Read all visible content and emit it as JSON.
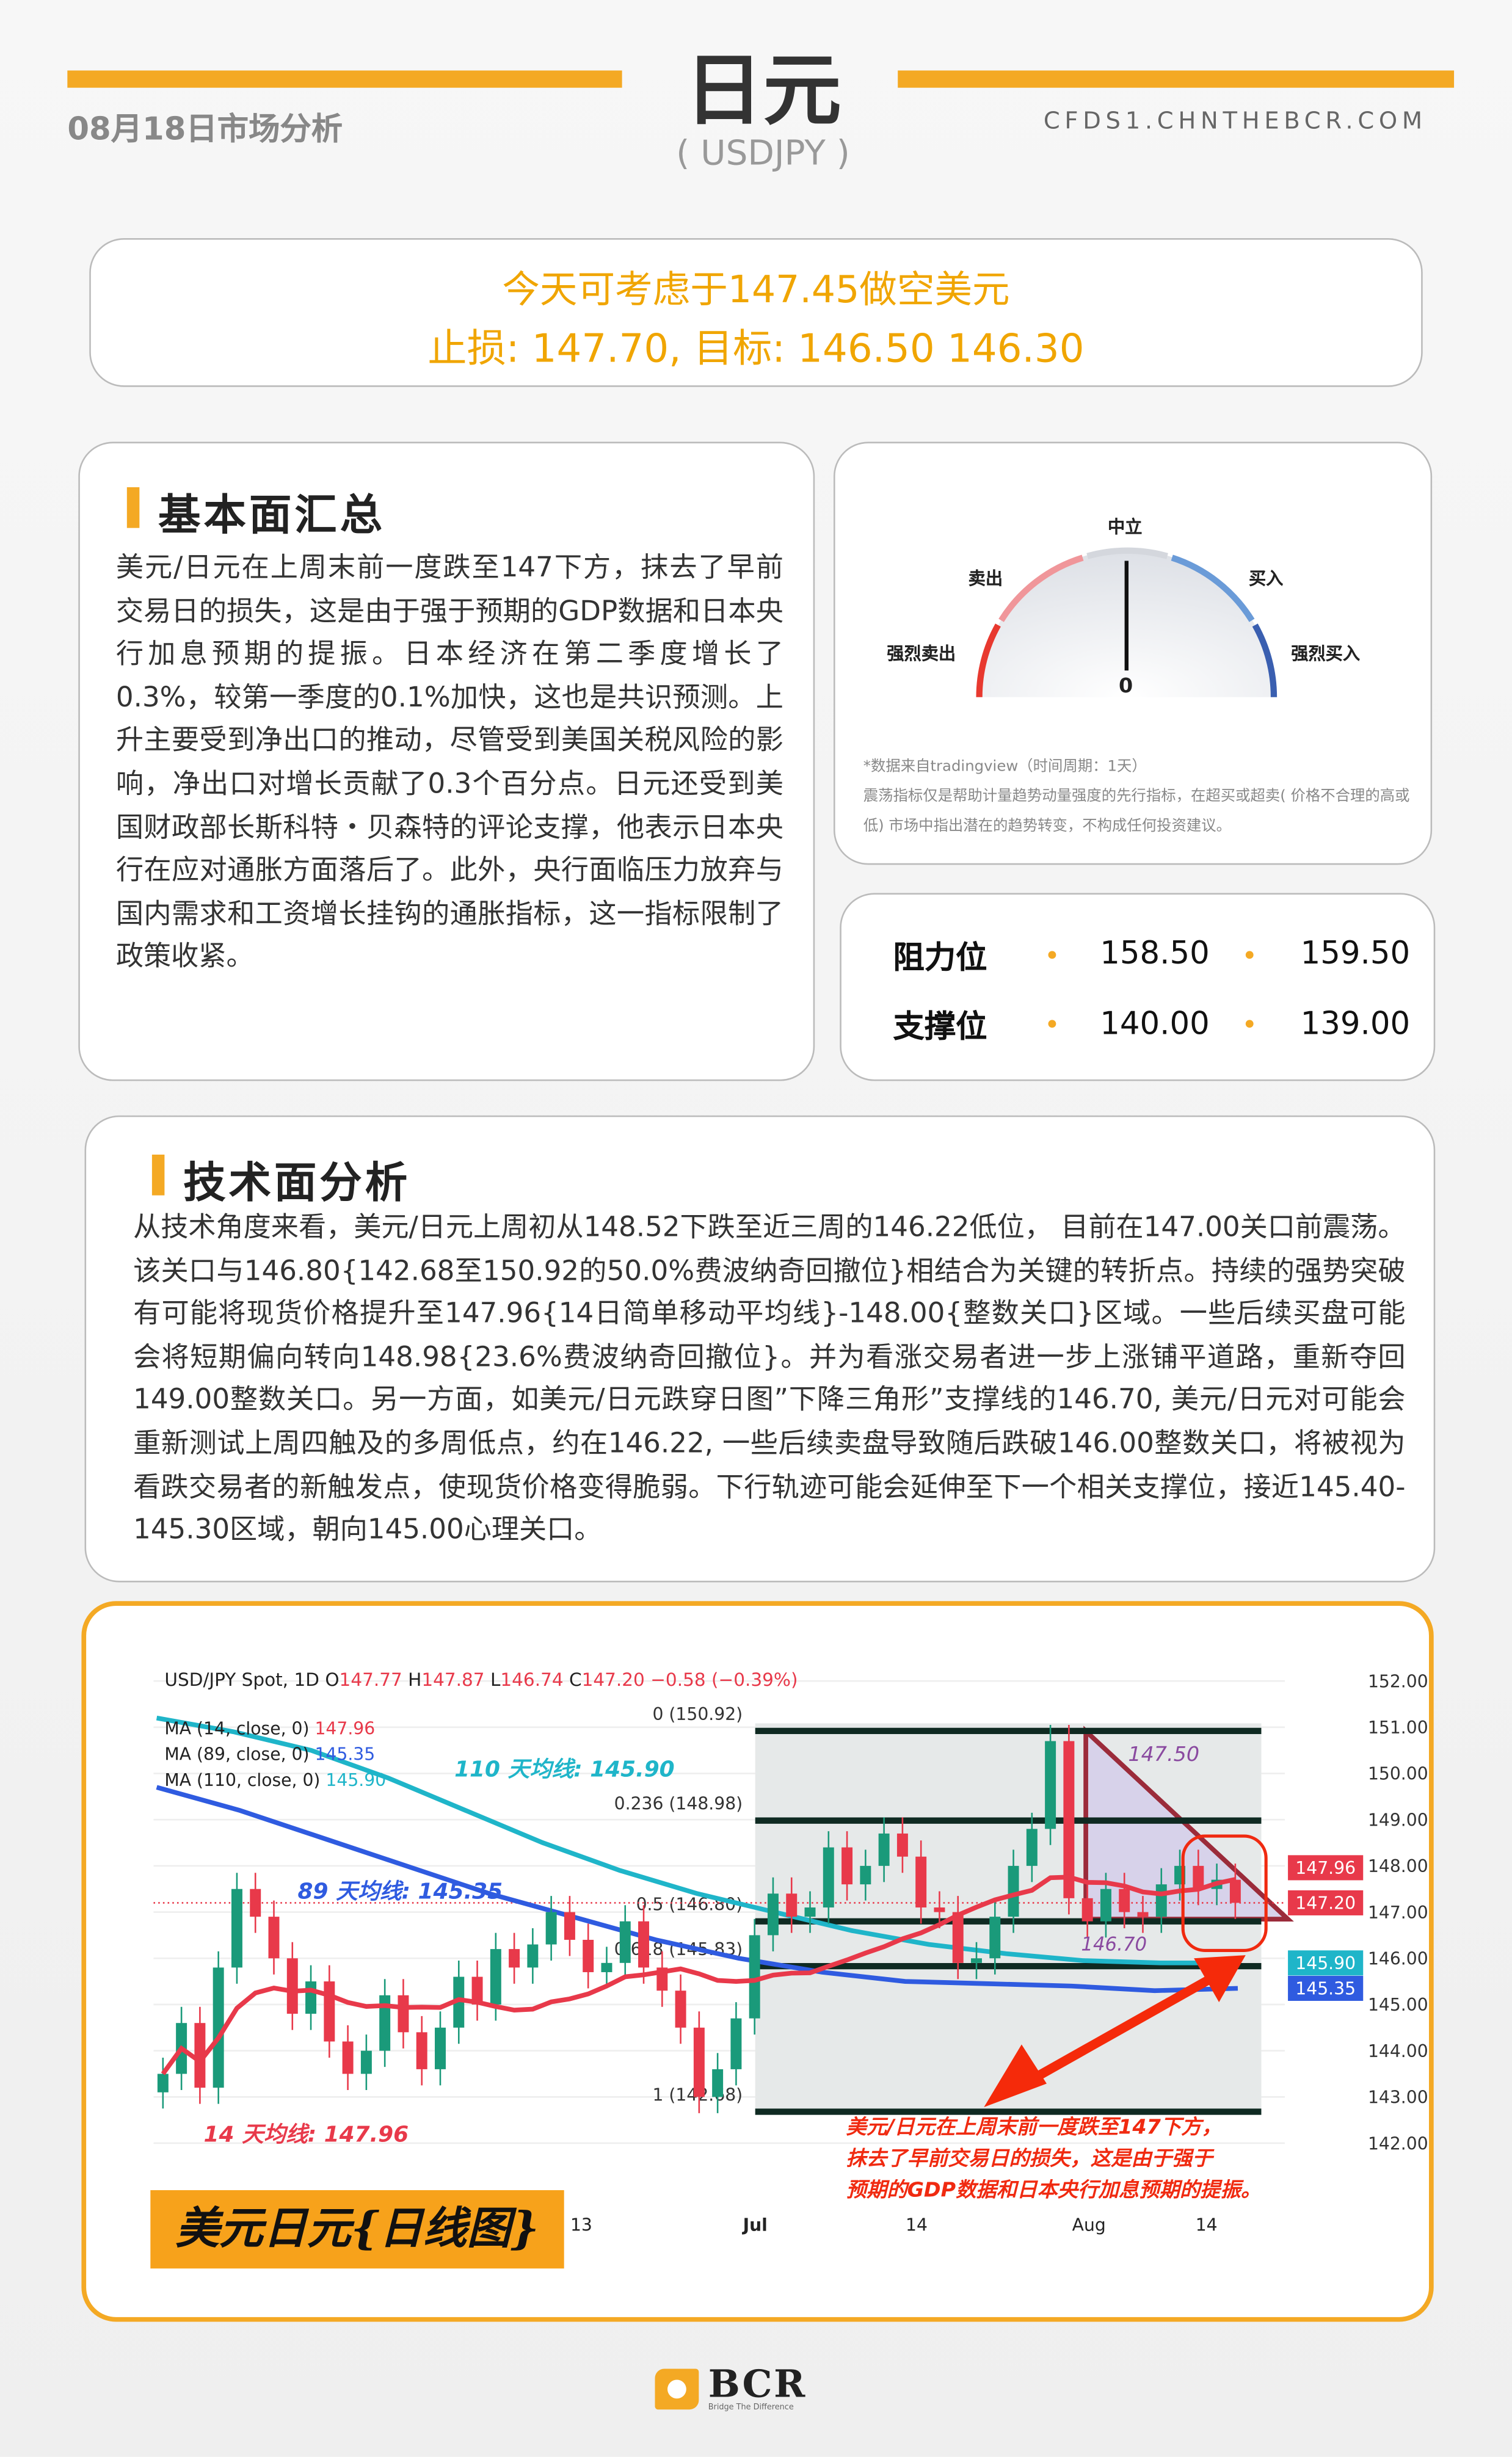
{
  "header": {
    "title": "日元",
    "subtitle": "( USDJPY )",
    "date_label": "08月18日市场分析",
    "site": "CFDS1.CHNTHEBCR.COM"
  },
  "signal": {
    "line1": "今天可考虑于147.45做空美元",
    "line2": "止损: 147.70, 目标: 146.50 146.30",
    "accent": "#f0a500"
  },
  "fundamental": {
    "title": "基本面汇总",
    "text": "美元/日元在上周末前一度跌至147下方，抹去了早前交易日的损失，这是由于强于预期的GDP数据和日本央行加息预期的提振。日本经济在第二季度增长了0.3%，较第一季度的0.1%加快，这也是共识预测。上升主要受到净出口的推动，尽管受到美国关税风险的影响，净出口对增长贡献了0.3个百分点。日元还受到美国财政部长斯科特・贝森特的评论支撑，他表示日本央行在应对通胀方面落后了。此外，央行面临压力放弃与国内需求和工资增长挂钩的通胀指标，这一指标限制了政策收紧。"
  },
  "gauge": {
    "labels": {
      "neutral": "中立",
      "sell": "卖出",
      "buy": "买入",
      "strong_sell": "强烈卖出",
      "strong_buy": "强烈买入"
    },
    "value": "0",
    "needle": "neutral",
    "source": "*数据来自tradingview（时间周期：1天）",
    "disclaimer": "震荡指标仅是帮助计量趋势动量强度的先行指标，在超买或超卖( 价格不合理的高或低) 市场中指出潜在的趋势转变，不构成任何投资建议。"
  },
  "levels": {
    "resistance_label": "阻力位",
    "resistance": [
      "158.50",
      "159.50"
    ],
    "support_label": "支撑位",
    "support": [
      "140.00",
      "139.00"
    ]
  },
  "technical": {
    "title": "技术面分析",
    "text": "从技术角度来看，美元/日元上周初从148.52下跌至近三周的146.22低位， 目前在147.00关口前震荡。该关口与146.80{142.68至150.92的50.0%费波纳奇回撤位}相结合为关键的转折点。持续的强势突破有可能将现货价格提升至147.96{14日简单移动平均线}-148.00{整数关口}区域。一些后续买盘可能会将短期偏向转向148.98{23.6%费波纳奇回撤位}。并为看涨交易者进一步上涨铺平道路，重新夺回149.00整数关口。另一方面，如美元/日元跌穿日图”下降三角形”支撑线的146.70, 美元/日元对可能会重新测试上周四触及的多周低点，约在146.22, 一些后续卖盘导致随后跌破146.00整数关口，将被视为看跌交易者的新触发点，使现货价格变得脆弱。下行轨迹可能会延伸至下一个相关支撑位，接近145.40-145.30区域，朝向145.00心理关口。"
  },
  "chart_data": {
    "type": "candlestick",
    "symbol_line": {
      "name": "USD/JPY Spot, 1D",
      "o_label": "O",
      "o": "147.77",
      "h_label": "H",
      "h": "147.87",
      "l_label": "L",
      "l": "146.74",
      "c_label": "C",
      "c": "147.20",
      "change": "−0.58 (−0.39%)"
    },
    "ma_legend": [
      {
        "label": "MA (14, close, 0)",
        "value": "147.96",
        "color": "#e8394a"
      },
      {
        "label": "MA (89, close, 0)",
        "value": "145.35",
        "color": "#2f5be0"
      },
      {
        "label": "MA (110, close, 0)",
        "value": "145.90",
        "color": "#1fb5c9"
      }
    ],
    "y_ticks": [
      "152.00",
      "151.00",
      "150.00",
      "149.00",
      "148.00",
      "147.00",
      "146.00",
      "145.00",
      "144.00",
      "143.00",
      "142.00"
    ],
    "ylim": [
      142,
      152
    ],
    "x_ticks": [
      "13",
      "Jul",
      "14",
      "Aug",
      "14"
    ],
    "closes": [
      143.5,
      144.6,
      143.2,
      145.8,
      147.5,
      146.9,
      146.0,
      144.8,
      145.5,
      144.2,
      143.5,
      144.0,
      145.2,
      144.4,
      143.6,
      144.5,
      145.6,
      145.0,
      146.2,
      145.8,
      146.3,
      147.0,
      146.4,
      145.7,
      145.9,
      146.8,
      145.8,
      145.3,
      144.5,
      143.0,
      143.6,
      144.7,
      146.5,
      147.4,
      146.9,
      147.1,
      148.4,
      147.6,
      148.0,
      148.7,
      148.2,
      147.1,
      147.0,
      145.9,
      146.0,
      146.9,
      148.0,
      148.8,
      150.7,
      147.3,
      146.8,
      147.5,
      147.0,
      146.9,
      147.6,
      148.0,
      147.5,
      147.7,
      147.2
    ],
    "ma89": [
      149.7,
      149.2,
      148.6,
      148.0,
      147.4,
      146.9,
      146.4,
      146.0,
      145.7,
      145.5,
      145.45,
      145.4,
      145.3,
      145.35
    ],
    "ma110": [
      151.2,
      150.9,
      150.5,
      149.9,
      149.2,
      148.5,
      147.9,
      147.4,
      147.0,
      146.6,
      146.3,
      146.1,
      145.95,
      145.9,
      145.9
    ],
    "fib": [
      {
        "label": "0 (150.92)",
        "value": 150.92
      },
      {
        "label": "0.236 (148.98)",
        "value": 148.98
      },
      {
        "label": "0.5 (146.80)",
        "value": 146.8
      },
      {
        "label": "0.618 (145.83)",
        "value": 145.83
      },
      {
        "label": "1 (142.68)",
        "value": 142.68
      }
    ],
    "price_tags": [
      {
        "value": "147.96",
        "color": "#e8394a"
      },
      {
        "value": "147.20",
        "color": "#e8394a"
      },
      {
        "value": "145.90",
        "color": "#1fb5c9"
      },
      {
        "value": "145.35",
        "color": "#2f5be0"
      }
    ],
    "triangle": {
      "top": "147.50",
      "bottom": "146.70"
    },
    "annotations": {
      "ma110": "110 天均线: 145.90",
      "ma89": "89 天均线: 145.35",
      "ma14": "14 天均线: 147.96",
      "note": [
        "美元/日元在上周末前一度跌至147下方，",
        "抹去了早前交易日的损失，这是由于强于",
        "预期的GDP数据和日本央行加息预期的提振。"
      ],
      "badge": "美元日元{日线图}"
    }
  },
  "footer": {
    "logo": "BCR",
    "tagline": "Bridge The Difference"
  }
}
